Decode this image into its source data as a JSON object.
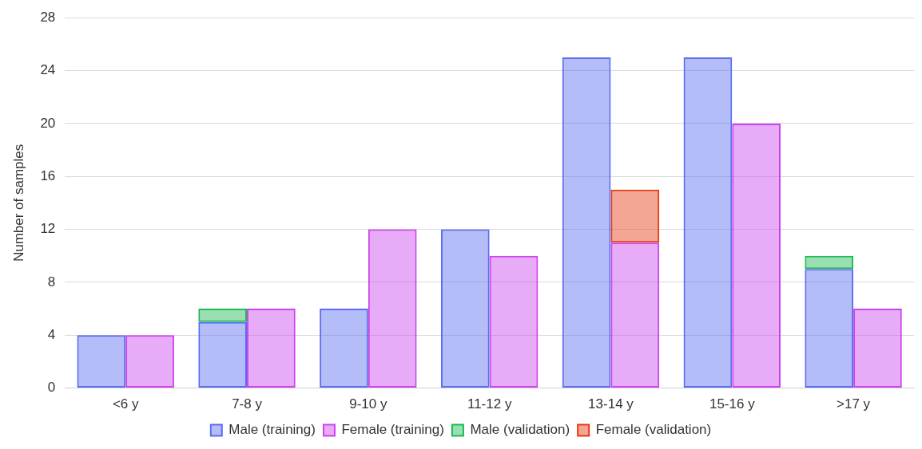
{
  "chart_data": {
    "type": "bar",
    "ylabel": "Number of samples",
    "categories": [
      "<6 y",
      "7-8 y",
      "9-10 y",
      "11-12 y",
      "13-14 y",
      "15-16 y",
      ">17 y"
    ],
    "series": [
      {
        "name": "Male (training)",
        "color": "#5b6cf0",
        "values": [
          4,
          5,
          6,
          12,
          25,
          25,
          9
        ]
      },
      {
        "name": "Female (training)",
        "color": "#cc44ee",
        "values": [
          4,
          6,
          12,
          10,
          11,
          20,
          6
        ]
      },
      {
        "name": "Male (validation)",
        "color": "#1db954",
        "values": [
          null,
          1,
          null,
          null,
          null,
          null,
          1
        ],
        "base": [
          null,
          5,
          null,
          null,
          null,
          null,
          9
        ]
      },
      {
        "name": "Female (validation)",
        "color": "#e63a12",
        "values": [
          null,
          null,
          null,
          null,
          4,
          null,
          null
        ],
        "base": [
          null,
          null,
          null,
          null,
          11,
          null,
          null
        ]
      }
    ],
    "ylim": [
      0,
      28
    ],
    "yticks": [
      0,
      4,
      8,
      12,
      16,
      20,
      24,
      28
    ],
    "grid": "y",
    "legend": "bottom"
  }
}
